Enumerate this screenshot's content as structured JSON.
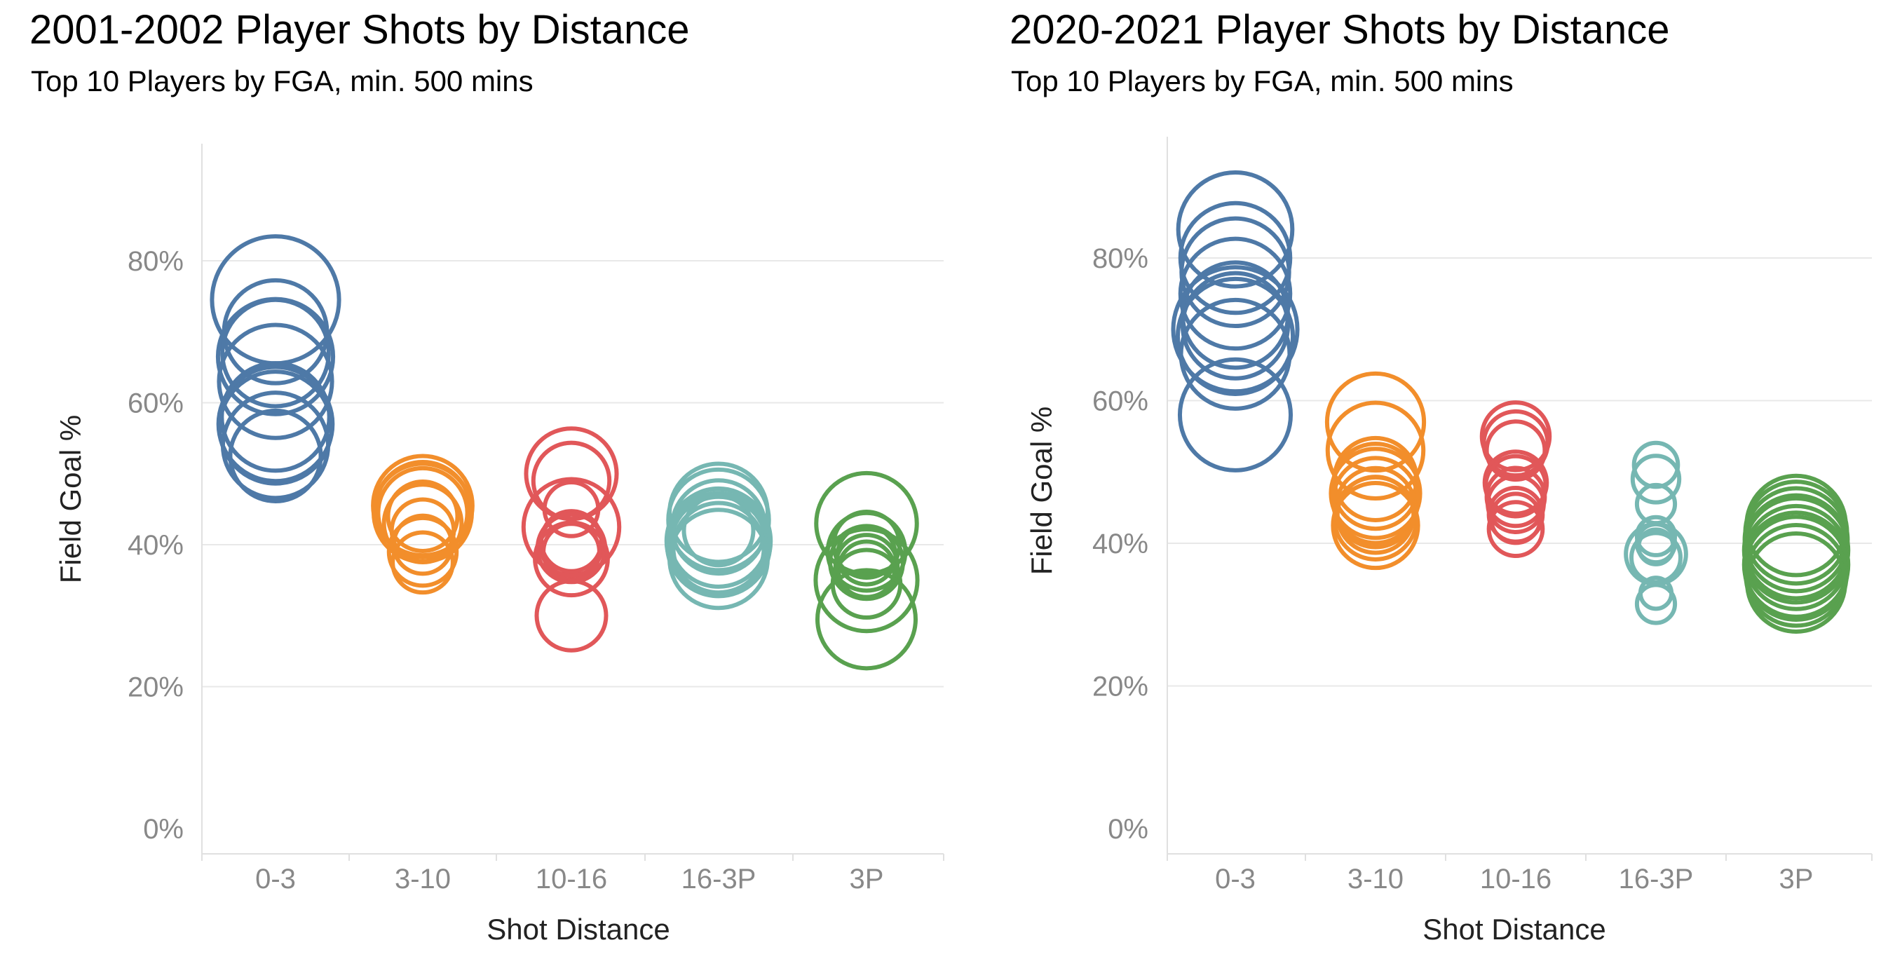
{
  "chart_data": [
    {
      "type": "scatter",
      "title": "2001-2002 Player Shots by Distance",
      "subtitle": "Top 10 Players by FGA, min. 500 mins",
      "xlabel": "Shot Distance",
      "ylabel": "Field Goal %",
      "categories": [
        "0-3",
        "3-10",
        "10-16",
        "16-3P",
        "3P"
      ],
      "yticks": [
        "0%",
        "20%",
        "40%",
        "60%",
        "80%"
      ],
      "ylim": [
        0,
        95
      ],
      "grid": true,
      "marker": "circle-outline",
      "size_encodes": "FGA",
      "colors": [
        "#4e79a7",
        "#f28e2b",
        "#e15759",
        "#76b7b2",
        "#59a14f"
      ],
      "series": [
        {
          "category": "0-3",
          "points": [
            {
              "y": 74.5,
              "size": 6.7
            },
            {
              "y": 70.0,
              "size": 4.4
            },
            {
              "y": 67.0,
              "size": 4.7
            },
            {
              "y": 66.5,
              "size": 5.5
            },
            {
              "y": 63.0,
              "size": 5.3
            },
            {
              "y": 58.0,
              "size": 4.8
            },
            {
              "y": 57.0,
              "size": 5.4
            },
            {
              "y": 56.5,
              "size": 5.2
            },
            {
              "y": 54.0,
              "size": 4.6
            },
            {
              "y": 52.5,
              "size": 3.4
            }
          ]
        },
        {
          "category": "3-10",
          "points": [
            {
              "y": 45.5,
              "size": 4.1
            },
            {
              "y": 45.0,
              "size": 3.7
            },
            {
              "y": 44.5,
              "size": 4.0
            },
            {
              "y": 44.5,
              "size": 3.3
            },
            {
              "y": 44.0,
              "size": 2.0
            },
            {
              "y": 42.0,
              "size": 1.6
            },
            {
              "y": 40.0,
              "size": 1.4
            },
            {
              "y": 39.0,
              "size": 1.9
            },
            {
              "y": 37.5,
              "size": 1.5
            },
            {
              "y": 43.0,
              "size": 2.5
            }
          ]
        },
        {
          "category": "10-16",
          "points": [
            {
              "y": 50.0,
              "size": 3.4
            },
            {
              "y": 49.0,
              "size": 2.4
            },
            {
              "y": 45.0,
              "size": 1.2
            },
            {
              "y": 42.5,
              "size": 3.8
            },
            {
              "y": 40.5,
              "size": 1.5
            },
            {
              "y": 40.0,
              "size": 1.6
            },
            {
              "y": 39.5,
              "size": 1.9
            },
            {
              "y": 39.0,
              "size": 1.3
            },
            {
              "y": 38.0,
              "size": 2.2
            },
            {
              "y": 30.0,
              "size": 2.0
            }
          ]
        },
        {
          "category": "16-3P",
          "points": [
            {
              "y": 44.5,
              "size": 4.0
            },
            {
              "y": 43.5,
              "size": 4.2
            },
            {
              "y": 42.5,
              "size": 3.6
            },
            {
              "y": 42.0,
              "size": 2.0
            },
            {
              "y": 41.0,
              "size": 4.0
            },
            {
              "y": 40.5,
              "size": 4.5
            },
            {
              "y": 40.0,
              "size": 3.8
            },
            {
              "y": 39.5,
              "size": 3.4
            },
            {
              "y": 40.0,
              "size": 4.4
            },
            {
              "y": 38.0,
              "size": 4.0
            }
          ]
        },
        {
          "category": "3P",
          "points": [
            {
              "y": 43.0,
              "size": 4.2
            },
            {
              "y": 40.0,
              "size": 1.8
            },
            {
              "y": 39.0,
              "size": 2.5
            },
            {
              "y": 38.5,
              "size": 1.4
            },
            {
              "y": 37.5,
              "size": 2.2
            },
            {
              "y": 37.0,
              "size": 1.6
            },
            {
              "y": 36.5,
              "size": 1.3
            },
            {
              "y": 35.0,
              "size": 4.3
            },
            {
              "y": 34.5,
              "size": 1.9
            },
            {
              "y": 29.5,
              "size": 4.0
            }
          ]
        }
      ]
    },
    {
      "type": "scatter",
      "title": "2020-2021 Player Shots by Distance",
      "subtitle": "Top 10 Players by FGA, min. 500 mins",
      "xlabel": "Shot Distance",
      "ylabel": "Field Goal %",
      "categories": [
        "0-3",
        "3-10",
        "10-16",
        "16-3P",
        "3P"
      ],
      "yticks": [
        "0%",
        "20%",
        "40%",
        "60%",
        "80%"
      ],
      "ylim": [
        0,
        95
      ],
      "grid": true,
      "marker": "circle-outline",
      "size_encodes": "FGA",
      "colors": [
        "#4e79a7",
        "#f28e2b",
        "#e15759",
        "#76b7b2",
        "#59a14f"
      ],
      "series": [
        {
          "category": "0-3",
          "points": [
            {
              "y": 84.0,
              "size": 5.4
            },
            {
              "y": 80.0,
              "size": 5.0
            },
            {
              "y": 78.0,
              "size": 4.8
            },
            {
              "y": 75.0,
              "size": 5.0
            },
            {
              "y": 72.0,
              "size": 4.6
            },
            {
              "y": 70.5,
              "size": 4.6
            },
            {
              "y": 70.0,
              "size": 6.4
            },
            {
              "y": 69.0,
              "size": 5.5
            },
            {
              "y": 66.5,
              "size": 4.9
            },
            {
              "y": 58.0,
              "size": 5.1
            }
          ]
        },
        {
          "category": "3-10",
          "points": [
            {
              "y": 57.0,
              "size": 3.9
            },
            {
              "y": 53.0,
              "size": 3.8
            },
            {
              "y": 49.0,
              "size": 2.8
            },
            {
              "y": 48.0,
              "size": 3.0
            },
            {
              "y": 47.0,
              "size": 3.3
            },
            {
              "y": 46.0,
              "size": 3.0
            },
            {
              "y": 45.0,
              "size": 2.6
            },
            {
              "y": 43.5,
              "size": 2.8
            },
            {
              "y": 42.5,
              "size": 3.0
            },
            {
              "y": 44.0,
              "size": 2.4
            }
          ]
        },
        {
          "category": "10-16",
          "points": [
            {
              "y": 55.0,
              "size": 1.9
            },
            {
              "y": 54.0,
              "size": 1.7
            },
            {
              "y": 53.0,
              "size": 1.4
            },
            {
              "y": 48.5,
              "size": 1.6
            },
            {
              "y": 48.0,
              "size": 1.5
            },
            {
              "y": 46.5,
              "size": 1.4
            },
            {
              "y": 45.5,
              "size": 1.3
            },
            {
              "y": 44.0,
              "size": 1.2
            },
            {
              "y": 43.5,
              "size": 1.0
            },
            {
              "y": 42.0,
              "size": 1.2
            }
          ]
        },
        {
          "category": "16-3P",
          "points": [
            {
              "y": 51.0,
              "size": 0.8
            },
            {
              "y": 49.0,
              "size": 0.9
            },
            {
              "y": 45.5,
              "size": 0.6
            },
            {
              "y": 41.0,
              "size": 0.6
            },
            {
              "y": 40.0,
              "size": 0.6
            },
            {
              "y": 39.5,
              "size": 0.5
            },
            {
              "y": 38.5,
              "size": 1.5
            },
            {
              "y": 33.0,
              "size": 0.4
            },
            {
              "y": 31.5,
              "size": 0.6
            },
            {
              "y": 38.0,
              "size": 1.0
            }
          ]
        },
        {
          "category": "3P",
          "points": [
            {
              "y": 42.5,
              "size": 4.1
            },
            {
              "y": 41.5,
              "size": 4.3
            },
            {
              "y": 40.5,
              "size": 4.4
            },
            {
              "y": 39.5,
              "size": 4.4
            },
            {
              "y": 39.0,
              "size": 4.5
            },
            {
              "y": 38.0,
              "size": 4.4
            },
            {
              "y": 37.0,
              "size": 4.5
            },
            {
              "y": 36.5,
              "size": 4.4
            },
            {
              "y": 35.5,
              "size": 4.2
            },
            {
              "y": 34.5,
              "size": 4.0
            }
          ]
        }
      ]
    }
  ]
}
